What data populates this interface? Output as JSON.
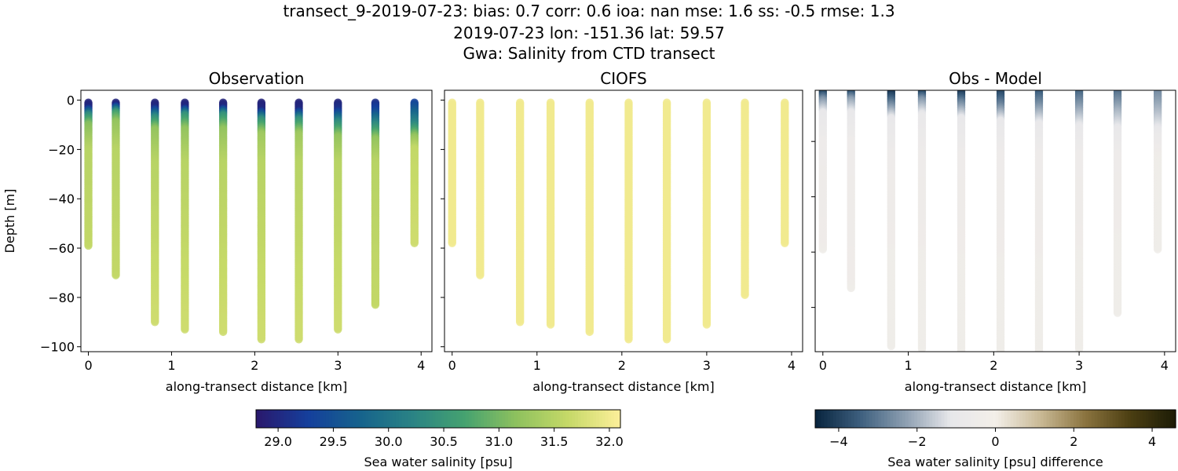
{
  "figure": {
    "title_line1": "transect_9-2019-07-23: bias: 0.7  corr: 0.6  ioa: nan  mse: 1.6  ss: -0.5  rmse: 1.3",
    "title_line2": "2019-07-23 lon: -151.36 lat: 59.57",
    "title_line3": "Gwa: Salinity from CTD transect"
  },
  "chart_data": [
    {
      "type": "scatter",
      "title": "Observation",
      "xlabel": "along-transect distance [km]",
      "ylabel": "Depth [m]",
      "xlim": [
        -0.09,
        4.13
      ],
      "ylim": [
        -102,
        4
      ],
      "xticks": [
        0,
        1,
        2,
        3,
        4
      ],
      "yticks": [
        0,
        -20,
        -40,
        -60,
        -80,
        -100
      ],
      "colormap": "haline",
      "stations": [
        {
          "x": 0.0,
          "bottom": -59,
          "profile": [
            [
              0,
              28.9
            ],
            [
              -3,
              29.0
            ],
            [
              -6,
              30.3
            ],
            [
              -10,
              31.1
            ],
            [
              -20,
              31.5
            ],
            [
              -59,
              31.6
            ]
          ]
        },
        {
          "x": 0.33,
          "bottom": -71,
          "profile": [
            [
              0,
              28.9
            ],
            [
              -2,
              29.0
            ],
            [
              -5,
              30.6
            ],
            [
              -9,
              31.2
            ],
            [
              -20,
              31.5
            ],
            [
              -71,
              31.6
            ]
          ]
        },
        {
          "x": 0.8,
          "bottom": -90,
          "profile": [
            [
              0,
              28.9
            ],
            [
              -3,
              29.0
            ],
            [
              -7,
              30.3
            ],
            [
              -12,
              31.2
            ],
            [
              -25,
              31.5
            ],
            [
              -90,
              31.7
            ]
          ]
        },
        {
          "x": 1.16,
          "bottom": -93,
          "profile": [
            [
              0,
              28.9
            ],
            [
              -3,
              29.0
            ],
            [
              -6,
              30.4
            ],
            [
              -12,
              31.2
            ],
            [
              -25,
              31.5
            ],
            [
              -93,
              31.7
            ]
          ]
        },
        {
          "x": 1.62,
          "bottom": -94,
          "profile": [
            [
              0,
              28.9
            ],
            [
              -3,
              29.0
            ],
            [
              -6,
              30.4
            ],
            [
              -12,
              31.2
            ],
            [
              -25,
              31.5
            ],
            [
              -94,
              31.7
            ]
          ]
        },
        {
          "x": 2.08,
          "bottom": -97,
          "profile": [
            [
              0,
              28.9
            ],
            [
              -4,
              29.0
            ],
            [
              -8,
              30.4
            ],
            [
              -14,
              31.3
            ],
            [
              -25,
              31.5
            ],
            [
              -97,
              31.7
            ]
          ]
        },
        {
          "x": 2.53,
          "bottom": -97,
          "profile": [
            [
              0,
              28.9
            ],
            [
              -4,
              29.0
            ],
            [
              -8,
              30.4
            ],
            [
              -14,
              31.3
            ],
            [
              -25,
              31.5
            ],
            [
              -97,
              31.7
            ]
          ]
        },
        {
          "x": 3.0,
          "bottom": -93,
          "profile": [
            [
              0,
              28.9
            ],
            [
              -4,
              29.1
            ],
            [
              -9,
              30.3
            ],
            [
              -15,
              31.2
            ],
            [
              -25,
              31.5
            ],
            [
              -93,
              31.7
            ]
          ]
        },
        {
          "x": 3.45,
          "bottom": -83,
          "profile": [
            [
              0,
              29.0
            ],
            [
              -4,
              29.3
            ],
            [
              -10,
              30.3
            ],
            [
              -16,
              31.2
            ],
            [
              -25,
              31.5
            ],
            [
              -83,
              31.6
            ]
          ]
        },
        {
          "x": 3.92,
          "bottom": -58,
          "profile": [
            [
              0,
              29.2
            ],
            [
              -4,
              29.6
            ],
            [
              -10,
              30.3
            ],
            [
              -15,
              31.2
            ],
            [
              -20,
              31.6
            ],
            [
              -58,
              31.7
            ]
          ]
        }
      ]
    },
    {
      "type": "scatter",
      "title": "CIOFS",
      "xlabel": "along-transect distance [km]",
      "xlim": [
        -0.09,
        4.13
      ],
      "ylim": [
        -102,
        4
      ],
      "xticks": [
        0,
        1,
        2,
        3,
        4
      ],
      "colormap": "haline",
      "stations": [
        {
          "x": 0.0,
          "bottom": -58,
          "profile": [
            [
              0,
              32.0
            ],
            [
              -58,
              32.0
            ]
          ]
        },
        {
          "x": 0.33,
          "bottom": -71,
          "profile": [
            [
              0,
              32.0
            ],
            [
              -71,
              32.0
            ]
          ]
        },
        {
          "x": 0.8,
          "bottom": -90,
          "profile": [
            [
              0,
              32.0
            ],
            [
              -90,
              32.0
            ]
          ]
        },
        {
          "x": 1.16,
          "bottom": -91,
          "profile": [
            [
              0,
              32.0
            ],
            [
              -91,
              32.0
            ]
          ]
        },
        {
          "x": 1.62,
          "bottom": -94,
          "profile": [
            [
              0,
              32.0
            ],
            [
              -94,
              32.0
            ]
          ]
        },
        {
          "x": 2.08,
          "bottom": -97,
          "profile": [
            [
              0,
              32.0
            ],
            [
              -97,
              32.0
            ]
          ]
        },
        {
          "x": 2.53,
          "bottom": -97,
          "profile": [
            [
              0,
              32.0
            ],
            [
              -97,
              32.0
            ]
          ]
        },
        {
          "x": 3.0,
          "bottom": -91,
          "profile": [
            [
              0,
              32.0
            ],
            [
              -91,
              32.0
            ]
          ]
        },
        {
          "x": 3.45,
          "bottom": -79,
          "profile": [
            [
              0,
              32.0
            ],
            [
              -79,
              32.0
            ]
          ]
        },
        {
          "x": 3.92,
          "bottom": -58,
          "profile": [
            [
              0,
              32.0
            ],
            [
              -58,
              32.0
            ]
          ]
        }
      ]
    },
    {
      "type": "scatter",
      "title": "Obs - Model",
      "xlabel": "along-transect distance [km]",
      "xlim": [
        -0.09,
        4.13
      ],
      "ylim": [
        -96,
        -1.5
      ],
      "xticks": [
        0,
        1,
        2,
        3,
        4
      ],
      "yticks": [
        -20,
        -40,
        -60,
        -80
      ],
      "colormap": "diff",
      "stations": [
        {
          "x": 0.0,
          "bottom": -59,
          "profile": [
            [
              -2,
              -4.2
            ],
            [
              -5,
              -2.5
            ],
            [
              -10,
              -1.0
            ],
            [
              -20,
              -0.6
            ],
            [
              -59,
              -0.5
            ]
          ]
        },
        {
          "x": 0.33,
          "bottom": -73,
          "profile": [
            [
              -2,
              -4.0
            ],
            [
              -5,
              -2.3
            ],
            [
              -10,
              -1.0
            ],
            [
              -20,
              -0.6
            ],
            [
              -73,
              -0.5
            ]
          ]
        },
        {
          "x": 0.8,
          "bottom": -94,
          "profile": [
            [
              -2,
              -4.4
            ],
            [
              -6,
              -3.0
            ],
            [
              -12,
              -1.0
            ],
            [
              -25,
              -0.6
            ],
            [
              -94,
              -0.4
            ]
          ]
        },
        {
          "x": 1.16,
          "bottom": -95,
          "profile": [
            [
              -2,
              -4.2
            ],
            [
              -5,
              -2.5
            ],
            [
              -11,
              -0.9
            ],
            [
              -25,
              -0.6
            ],
            [
              -95,
              -0.4
            ]
          ]
        },
        {
          "x": 1.62,
          "bottom": -98,
          "profile": [
            [
              -2,
              -4.3
            ],
            [
              -6,
              -2.8
            ],
            [
              -12,
              -1.0
            ],
            [
              -25,
              -0.6
            ],
            [
              -98,
              -0.4
            ]
          ]
        },
        {
          "x": 2.08,
          "bottom": -100,
          "profile": [
            [
              -2,
              -4.0
            ],
            [
              -7,
              -2.8
            ],
            [
              -13,
              -1.0
            ],
            [
              -25,
              -0.6
            ],
            [
              -100,
              -0.4
            ]
          ]
        },
        {
          "x": 2.53,
          "bottom": -100,
          "profile": [
            [
              -2,
              -3.6
            ],
            [
              -7,
              -2.6
            ],
            [
              -14,
              -1.0
            ],
            [
              -25,
              -0.6
            ],
            [
              -100,
              -0.4
            ]
          ]
        },
        {
          "x": 3.0,
          "bottom": -95,
          "profile": [
            [
              -2,
              -3.4
            ],
            [
              -8,
              -2.3
            ],
            [
              -15,
              -1.0
            ],
            [
              -25,
              -0.6
            ],
            [
              -95,
              -0.4
            ]
          ]
        },
        {
          "x": 3.45,
          "bottom": -82,
          "profile": [
            [
              -2,
              -3.2
            ],
            [
              -9,
              -2.0
            ],
            [
              -16,
              -1.0
            ],
            [
              -25,
              -0.6
            ],
            [
              -82,
              -0.4
            ]
          ]
        },
        {
          "x": 3.92,
          "bottom": -59,
          "profile": [
            [
              -2,
              -2.7
            ],
            [
              -10,
              -1.8
            ],
            [
              -18,
              -0.8
            ],
            [
              -25,
              -0.5
            ],
            [
              -59,
              -0.4
            ]
          ]
        }
      ]
    }
  ],
  "colorbars": [
    {
      "label": "Sea water salinity [psu]",
      "range": [
        28.8,
        32.1
      ],
      "ticks": [
        "29.0",
        "29.5",
        "30.0",
        "30.5",
        "31.0",
        "31.5",
        "32.0"
      ],
      "tick_values": [
        29.0,
        29.5,
        30.0,
        30.5,
        31.0,
        31.5,
        32.0
      ],
      "colormap": "haline"
    },
    {
      "label": "Sea water salinity [psu] difference",
      "range": [
        -4.6,
        4.6
      ],
      "ticks": [
        "−4",
        "−2",
        "0",
        "2",
        "4"
      ],
      "tick_values": [
        -4,
        -2,
        0,
        2,
        4
      ],
      "colormap": "diff"
    }
  ],
  "colormaps": {
    "haline": [
      "#2a186c",
      "#153f9c",
      "#16638c",
      "#2a8385",
      "#45a270",
      "#8ec15e",
      "#c6d968",
      "#fdef9a"
    ],
    "diff": [
      "#08243e",
      "#3d5f7e",
      "#8d9fb1",
      "#e7e7ea",
      "#f3efe9",
      "#c9b995",
      "#8a733e",
      "#4b3e12",
      "#1c1c06"
    ]
  }
}
